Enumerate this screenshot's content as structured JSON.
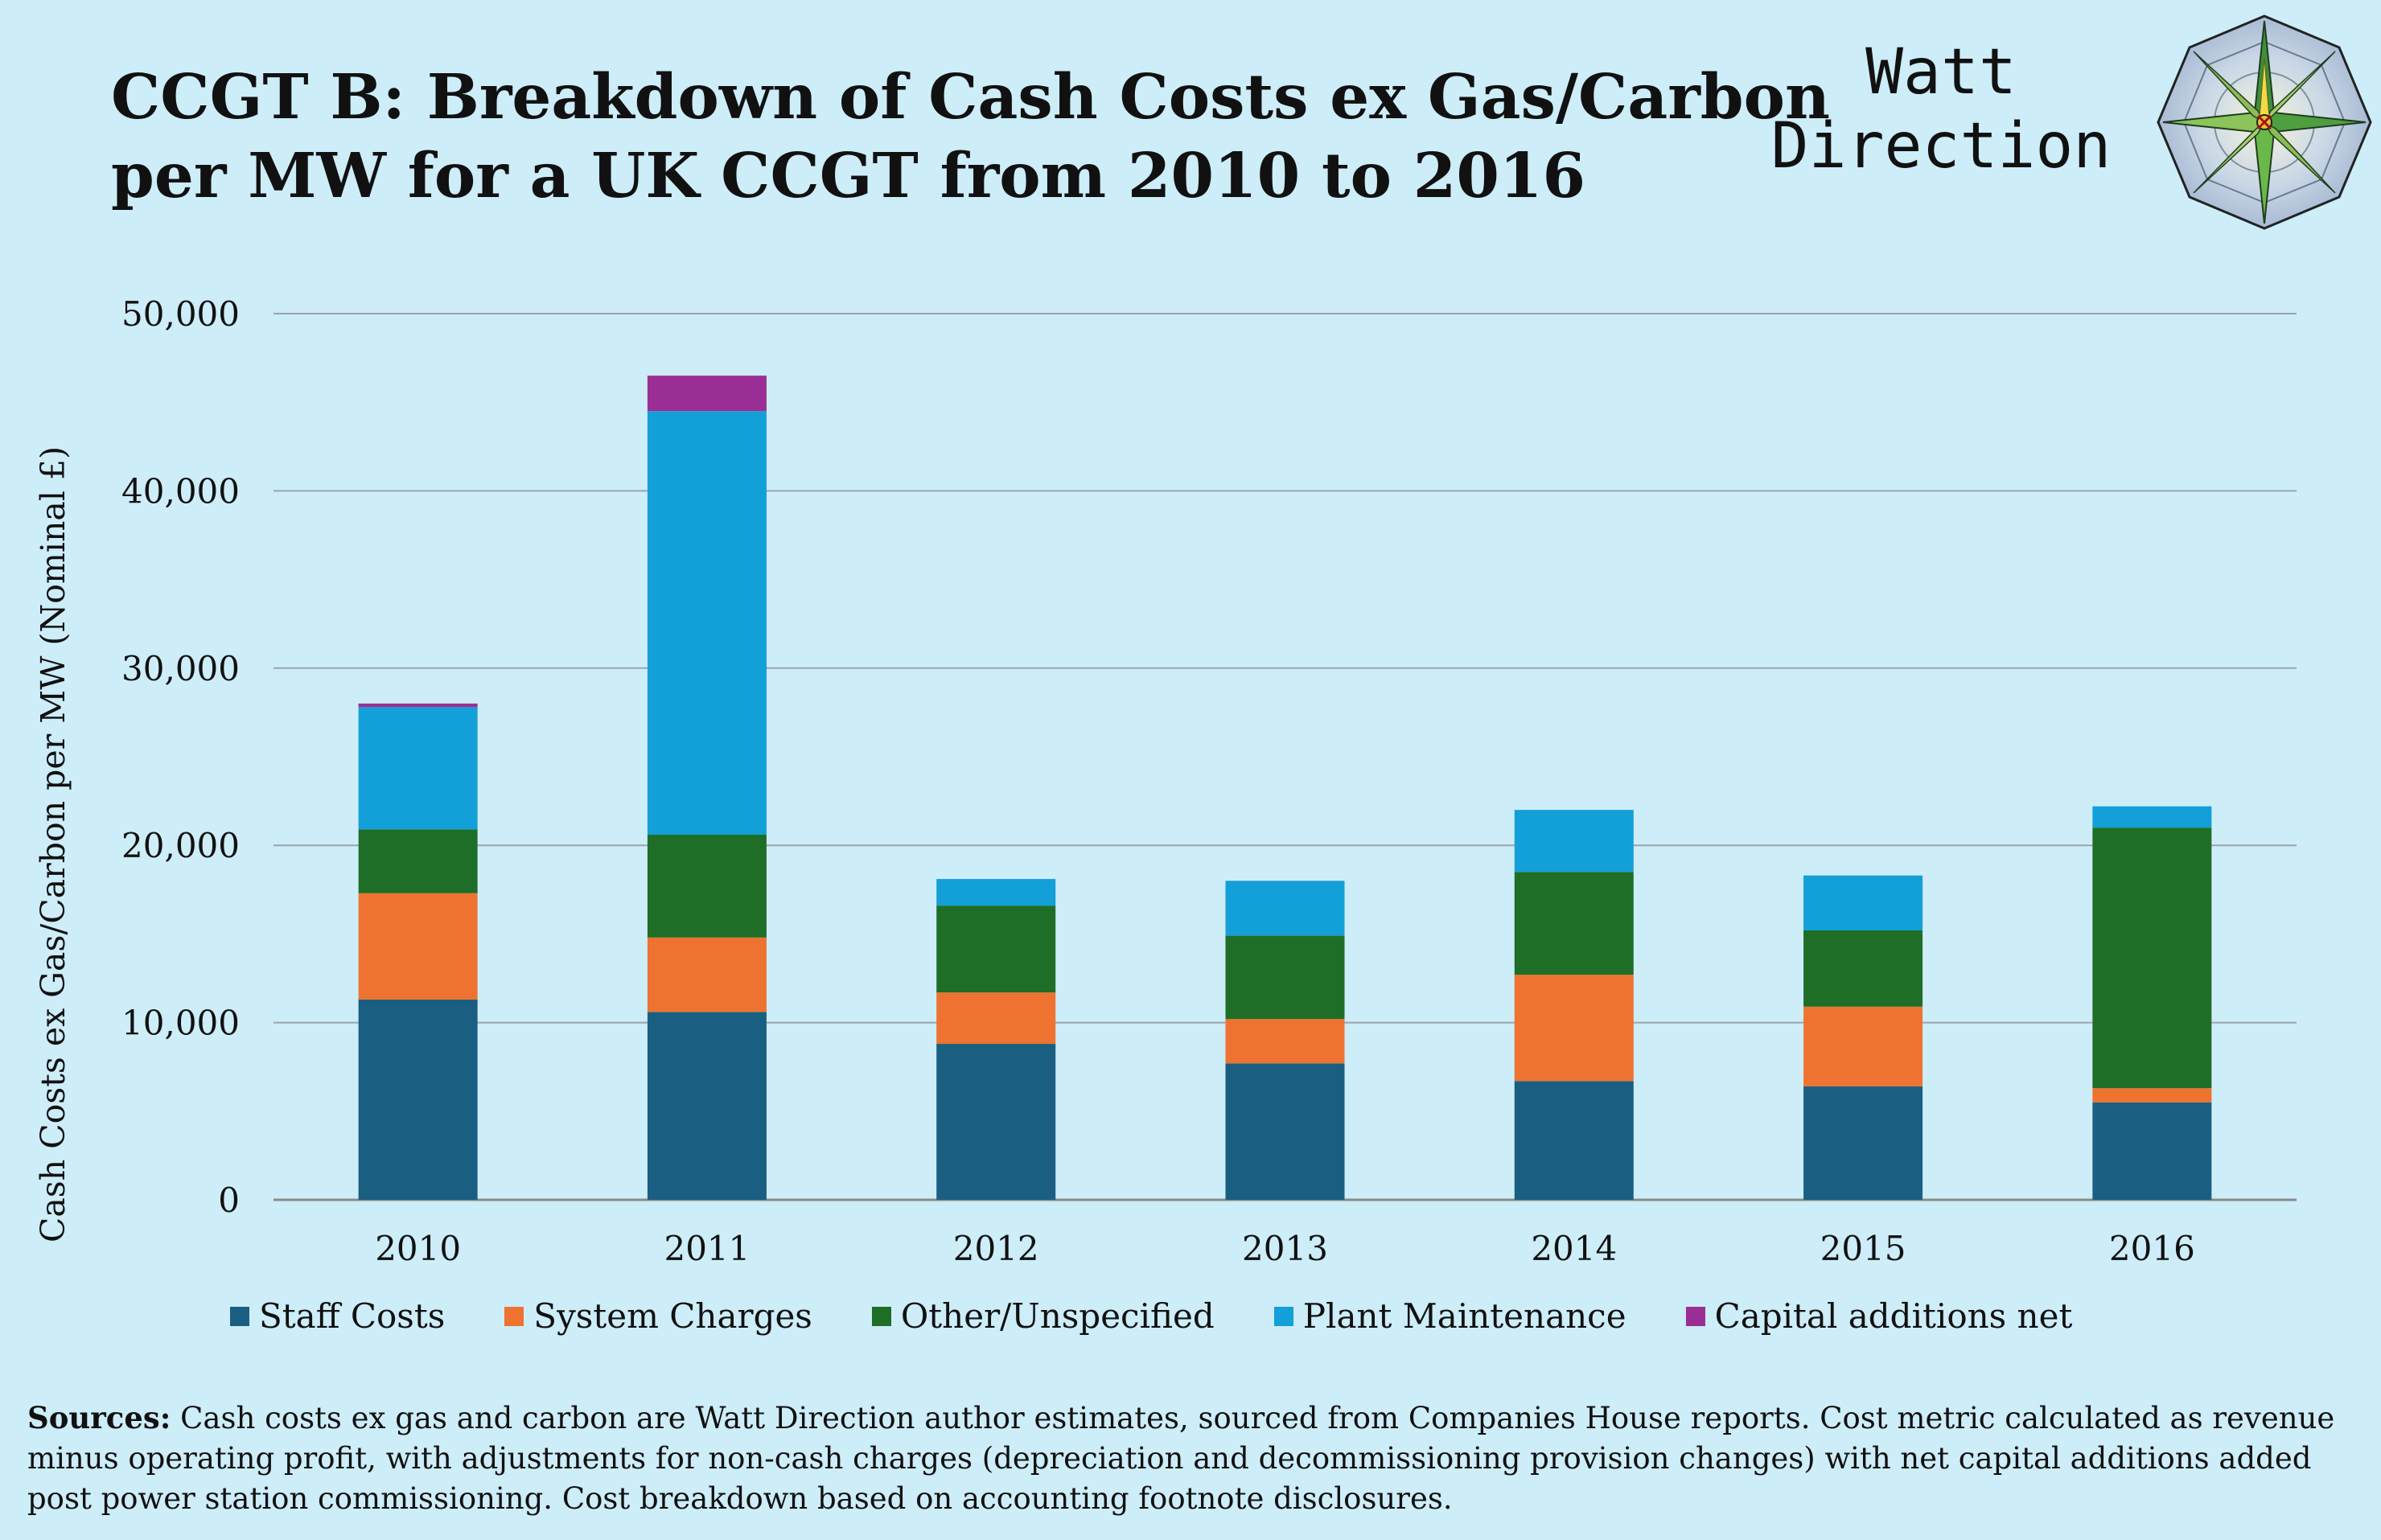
{
  "title": {
    "line1": "CCGT B: Breakdown of Cash Costs ex Gas/Carbon",
    "line2": "per MW for a UK CCGT from 2010 to 2016"
  },
  "brand": {
    "line1": "Watt",
    "line2": "Direction",
    "icon": "compass-rose-icon"
  },
  "sources": {
    "label": "Sources:",
    "text": "Cash costs ex gas and carbon are Watt Direction author estimates, sourced from Companies House reports. Cost metric calculated as revenue minus operating profit, with adjustments for non-cash charges (depreciation and decommissioning provision changes) with net capital additions added post power station commissioning. Cost breakdown based on accounting footnote disclosures."
  },
  "chart_data": {
    "type": "bar",
    "stacked": true,
    "title": "CCGT B: Breakdown of Cash Costs ex Gas/Carbon per MW for a UK CCGT from 2010 to 2016",
    "xlabel": "",
    "ylabel": "Cash Costs ex Gas/Carbon per MW (Nominal £)",
    "ylim": [
      0,
      50000
    ],
    "yticks": [
      0,
      10000,
      20000,
      30000,
      40000,
      50000
    ],
    "ytick_labels": [
      "0",
      "10,000",
      "20,000",
      "30,000",
      "40,000",
      "50,000"
    ],
    "grid": true,
    "legend_position": "bottom",
    "categories": [
      "2010",
      "2011",
      "2012",
      "2013",
      "2014",
      "2015",
      "2016"
    ],
    "series": [
      {
        "name": "Staff Costs",
        "color": "#1a5f82",
        "values": [
          11300,
          10600,
          8800,
          7700,
          6700,
          6400,
          5500
        ]
      },
      {
        "name": "System Charges",
        "color": "#ee7330",
        "values": [
          6000,
          4200,
          2900,
          2500,
          6000,
          4500,
          800
        ]
      },
      {
        "name": "Other/Unspecified",
        "color": "#1f6e27",
        "values": [
          3600,
          5800,
          4900,
          4700,
          5800,
          4300,
          14700
        ]
      },
      {
        "name": "Plant Maintenance",
        "color": "#139fd8",
        "values": [
          6900,
          23900,
          1500,
          3100,
          3500,
          3100,
          1200
        ]
      },
      {
        "name": "Capital additions net",
        "color": "#9b2e94",
        "values": [
          200,
          2000,
          0,
          0,
          0,
          0,
          0
        ]
      }
    ]
  }
}
